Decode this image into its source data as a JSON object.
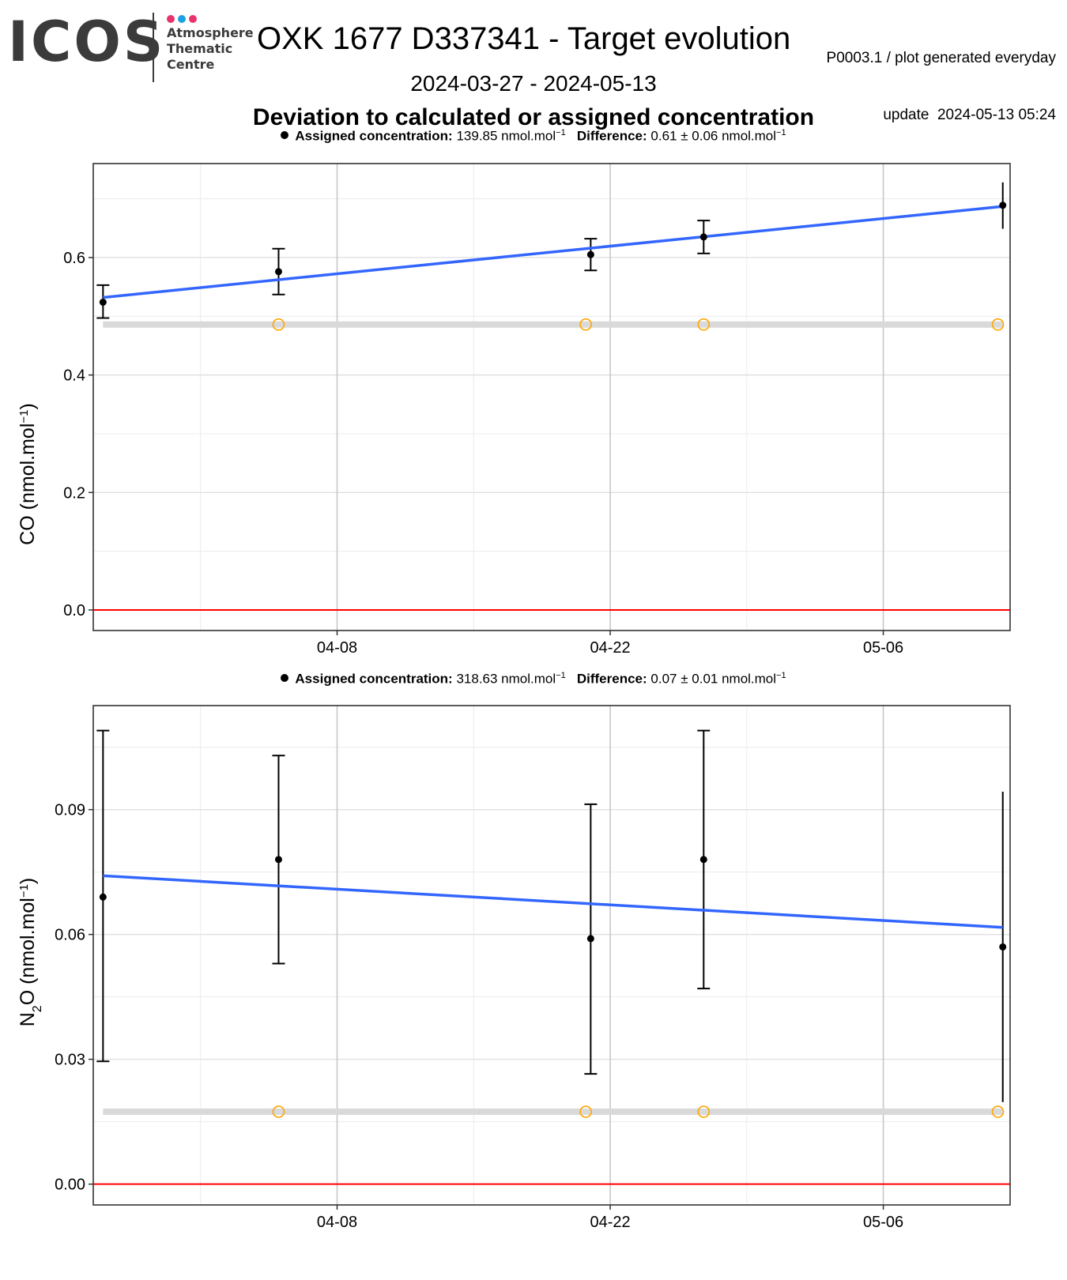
{
  "header": {
    "logo_text": "ICOS",
    "logo_dot_colors": [
      "#e8336d",
      "#1aa1e0",
      "#e8336d"
    ],
    "logo_line1": "Atmosphere",
    "logo_line2": "Thematic",
    "logo_line3": "Centre",
    "title": "OXK 1677 D337341 - Target evolution",
    "meta_line1": "P0003.1 / plot generated everyday",
    "meta_line2": "update  2024-05-13 05:24",
    "period": "2024-03-27 - 2024-05-13",
    "subtitle": "Deviation to calculated or assigned concentration"
  },
  "colors": {
    "points": "#000000",
    "trend": "#3366ff",
    "zero_line": "#ff0000",
    "assigned_band": "#d9d9d9",
    "open_markers": "#ffa500"
  },
  "chart_data": [
    {
      "type": "scatter",
      "legend": {
        "assigned_label": "Assigned concentration:",
        "assigned_value": "139.85 nmol.mol",
        "difference_label": "Difference:",
        "difference_value": "0.61 ± 0.06 nmol.mol",
        "superscript": "−1"
      },
      "ylabel": "CO (nmol.mol",
      "ylabel_sup": "−1",
      "ylabel_end": ")",
      "x_ticks": [
        "04-08",
        "04-22",
        "05-06"
      ],
      "x_tick_dates": [
        "2024-04-08",
        "2024-04-22",
        "2024-05-06"
      ],
      "y_ticks": [
        "0.0",
        "0.2",
        "0.4",
        "0.6"
      ],
      "y_tick_values": [
        0.0,
        0.2,
        0.4,
        0.6
      ],
      "xlim": [
        "2024-03-26T12:00",
        "2024-05-12T12:00"
      ],
      "ylim": [
        -0.035,
        0.76
      ],
      "grid": true,
      "points": [
        {
          "x": "2024-03-27T00:00",
          "y": 0.524,
          "ylo": 0.497,
          "yhi": 0.553
        },
        {
          "x": "2024-04-05T00:00",
          "y": 0.576,
          "ylo": 0.537,
          "yhi": 0.615
        },
        {
          "x": "2024-04-21T00:00",
          "y": 0.605,
          "ylo": 0.578,
          "yhi": 0.632
        },
        {
          "x": "2024-04-26T19:00",
          "y": 0.635,
          "ylo": 0.607,
          "yhi": 0.663
        },
        {
          "x": "2024-05-12T03:00",
          "y": 0.689,
          "ylo": 0.649,
          "yhi": 0.728
        }
      ],
      "trend": {
        "x": [
          "2024-03-27T00:00",
          "2024-05-12T03:00"
        ],
        "y": [
          0.532,
          0.687
        ]
      },
      "assigned_band": {
        "x": [
          "2024-03-27T00:00",
          "2024-05-12T03:00"
        ],
        "y": 0.486
      },
      "open_markers": {
        "x": [
          "2024-04-05T00:00",
          "2024-04-20T18:00",
          "2024-04-26T19:00",
          "2024-05-11T21:00"
        ],
        "y": 0.486
      },
      "zero_line": 0
    },
    {
      "type": "scatter",
      "legend": {
        "assigned_label": "Assigned concentration:",
        "assigned_value": "318.63 nmol.mol",
        "difference_label": "Difference:",
        "difference_value": "0.07 ± 0.01 nmol.mol",
        "superscript": "−1"
      },
      "ylabel": "N",
      "ylabel_sub": "2",
      "ylabel_mid": "O (nmol.mol",
      "ylabel_sup": "−1",
      "ylabel_end": ")",
      "x_ticks": [
        "04-08",
        "04-22",
        "05-06"
      ],
      "x_tick_dates": [
        "2024-04-08",
        "2024-04-22",
        "2024-05-06"
      ],
      "y_ticks": [
        "0.00",
        "0.03",
        "0.06",
        "0.09"
      ],
      "y_tick_values": [
        0.0,
        0.03,
        0.06,
        0.09
      ],
      "xlim": [
        "2024-03-26T12:00",
        "2024-05-12T12:00"
      ],
      "ylim": [
        -0.005,
        0.115
      ],
      "grid": true,
      "points": [
        {
          "x": "2024-03-27T00:00",
          "y": 0.069,
          "ylo": 0.0295,
          "yhi": 0.109
        },
        {
          "x": "2024-04-05T00:00",
          "y": 0.078,
          "ylo": 0.053,
          "yhi": 0.103
        },
        {
          "x": "2024-04-21T00:00",
          "y": 0.059,
          "ylo": 0.0265,
          "yhi": 0.0913
        },
        {
          "x": "2024-04-26T19:00",
          "y": 0.078,
          "ylo": 0.047,
          "yhi": 0.109
        },
        {
          "x": "2024-05-12T03:00",
          "y": 0.057,
          "ylo": 0.0197,
          "yhi": 0.0943
        }
      ],
      "trend": {
        "x": [
          "2024-03-27T00:00",
          "2024-05-12T03:00"
        ],
        "y": [
          0.0741,
          0.0617
        ]
      },
      "assigned_band": {
        "x": [
          "2024-03-27T00:00",
          "2024-05-12T03:00"
        ],
        "y": 0.0174
      },
      "open_markers": {
        "x": [
          "2024-04-05T00:00",
          "2024-04-20T18:00",
          "2024-04-26T19:00",
          "2024-05-11T21:00"
        ],
        "y": 0.0174
      },
      "zero_line": 0
    }
  ]
}
